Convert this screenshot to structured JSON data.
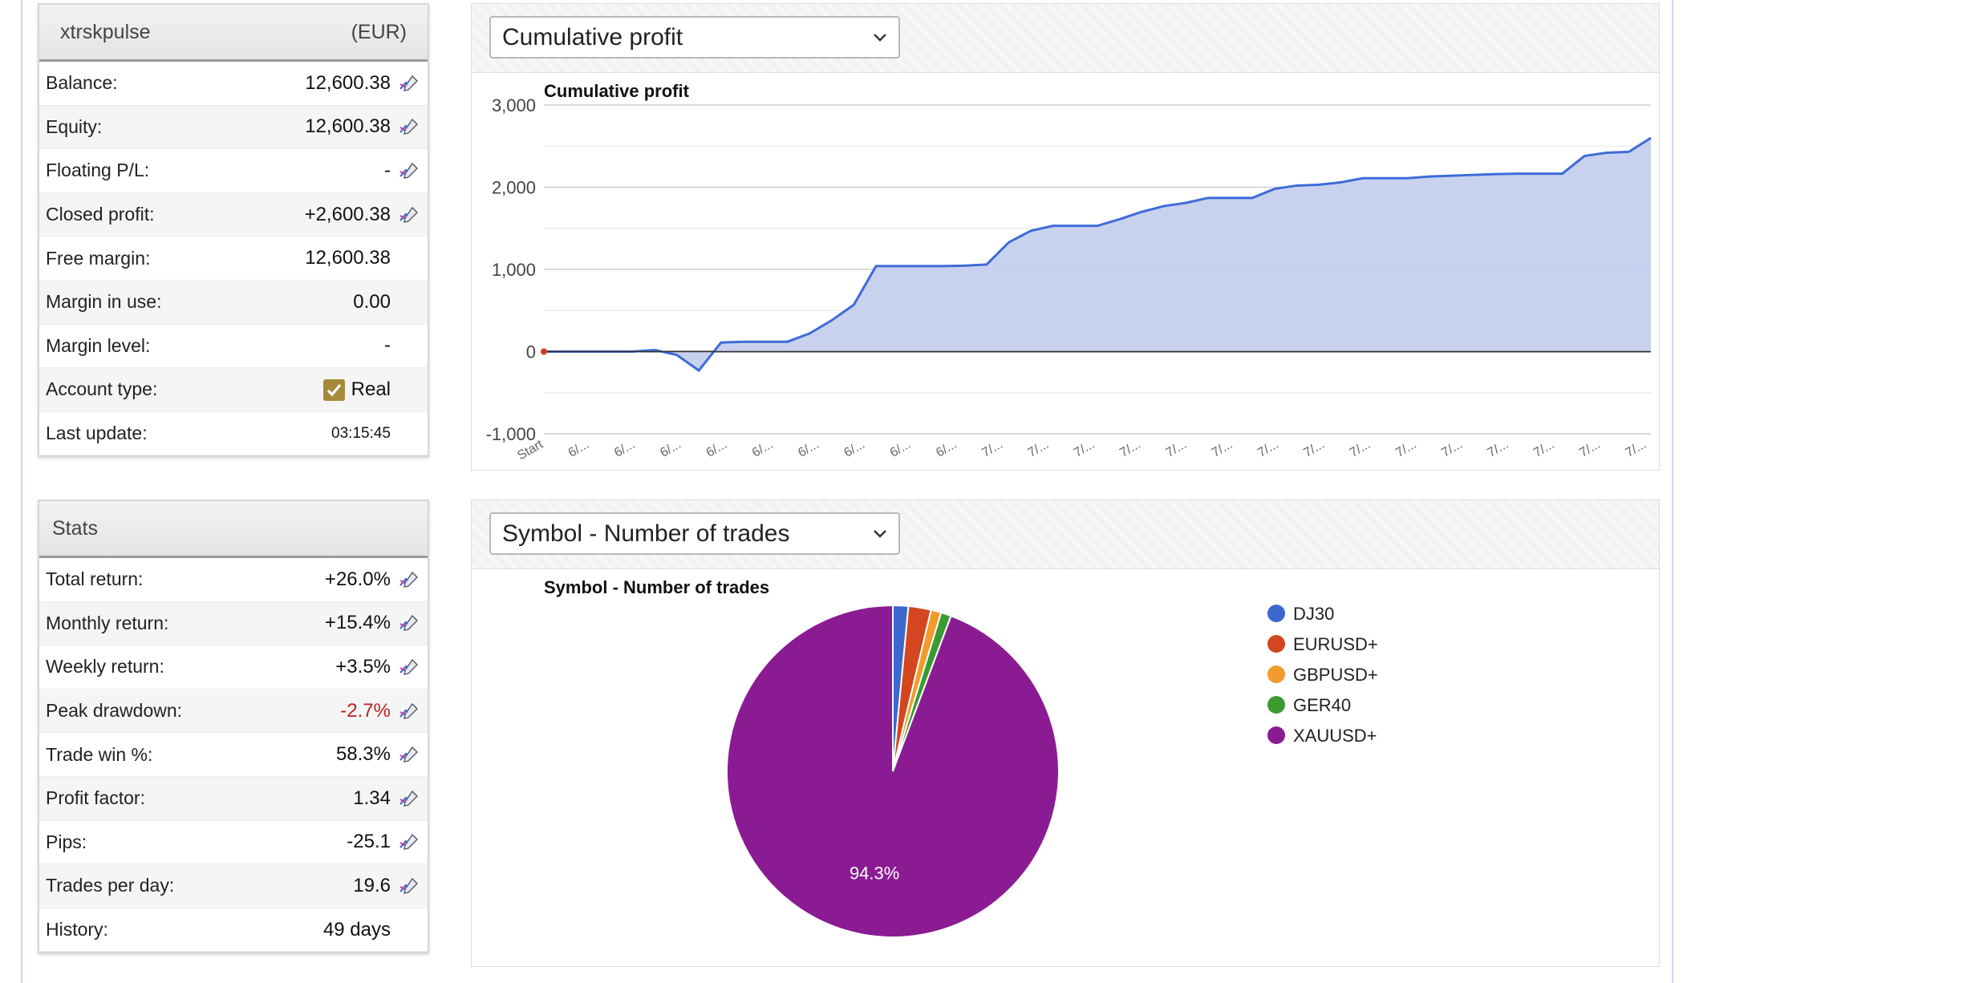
{
  "account": {
    "name": "xtrskpulse",
    "currency": "(EUR)",
    "rows": [
      {
        "label": "Balance:",
        "value": "12,600.38",
        "editable": true
      },
      {
        "label": "Equity:",
        "value": "12,600.38",
        "editable": true
      },
      {
        "label": "Floating P/L:",
        "value": "-",
        "editable": true
      },
      {
        "label": "Closed profit:",
        "value": "+2,600.38",
        "editable": true
      },
      {
        "label": "Free margin:",
        "value": "12,600.38",
        "editable": false
      },
      {
        "label": "Margin in use:",
        "value": "0.00",
        "editable": false
      },
      {
        "label": "Margin level:",
        "value": "-",
        "editable": false
      },
      {
        "label": "Account type:",
        "value": "Real",
        "editable": false,
        "checkbox": true
      },
      {
        "label": "Last update:",
        "value": "03:15:45",
        "editable": false,
        "small": true
      }
    ]
  },
  "stats": {
    "title": "Stats",
    "rows": [
      {
        "label": "Total return:",
        "value": "+26.0%",
        "editable": true
      },
      {
        "label": "Monthly return:",
        "value": "+15.4%",
        "editable": true
      },
      {
        "label": "Weekly return:",
        "value": "+3.5%",
        "editable": true
      },
      {
        "label": "Peak drawdown:",
        "value": "-2.7%",
        "editable": true,
        "negative": true
      },
      {
        "label": "Trade win %:",
        "value": "58.3%",
        "editable": true
      },
      {
        "label": "Profit factor:",
        "value": "1.34",
        "editable": true
      },
      {
        "label": "Pips:",
        "value": "-25.1",
        "editable": true
      },
      {
        "label": "Trades per day:",
        "value": "19.6",
        "editable": true
      },
      {
        "label": "History:",
        "value": "49 days",
        "editable": false
      }
    ]
  },
  "charts": {
    "line_selector": "Cumulative profit",
    "pie_selector": "Symbol - Number of trades"
  },
  "icons": {
    "edit": "pencil-chart-icon",
    "dropdown": "chevron-down-icon",
    "checkbox": "checkmark-icon"
  },
  "colors": {
    "line": "#3f6bd6",
    "area": "#c5d0ee",
    "negative": "#c0211f",
    "checkbox": "#a68a3a"
  },
  "chart_data": [
    {
      "type": "area",
      "title": "Cumulative profit",
      "xlabel": "",
      "ylabel": "",
      "ylim": [
        -1000,
        3000
      ],
      "yticks": [
        -1000,
        0,
        1000,
        2000,
        3000
      ],
      "ytick_labels": [
        "-1,000",
        "0",
        "1,000",
        "2,000",
        "3,000"
      ],
      "xtick_labels": [
        "Start",
        "6/...",
        "6/...",
        "6/...",
        "6/...",
        "6/...",
        "6/...",
        "6/...",
        "6/...",
        "6/...",
        "7/...",
        "7/...",
        "7/...",
        "7/...",
        "7/...",
        "7/...",
        "7/...",
        "7/...",
        "7/...",
        "7/...",
        "7/...",
        "7/...",
        "7/...",
        "7/...",
        "7/..."
      ],
      "grid": true,
      "legend": "none",
      "values": [
        0,
        0,
        0,
        0,
        0,
        20,
        -40,
        -230,
        110,
        120,
        120,
        120,
        220,
        380,
        570,
        1040,
        1040,
        1040,
        1040,
        1045,
        1060,
        1330,
        1470,
        1530,
        1530,
        1530,
        1610,
        1700,
        1770,
        1810,
        1870,
        1870,
        1870,
        1980,
        2020,
        2030,
        2060,
        2110,
        2110,
        2110,
        2130,
        2140,
        2150,
        2160,
        2165,
        2165,
        2165,
        2380,
        2420,
        2430,
        2600
      ]
    },
    {
      "type": "pie",
      "title": "Symbol - Number of trades",
      "legend": "right",
      "labels": [
        "DJ30",
        "EURUSD+",
        "GBPUSD+",
        "GER40",
        "XAUUSD+"
      ],
      "values": [
        1.5,
        2.2,
        1.0,
        1.0,
        94.3
      ],
      "colors": [
        "#3d68cf",
        "#d3461f",
        "#f29b2c",
        "#3b9b32",
        "#8b1b93"
      ],
      "slice_labels": [
        "",
        "",
        "",
        "",
        "94.3%"
      ]
    }
  ]
}
